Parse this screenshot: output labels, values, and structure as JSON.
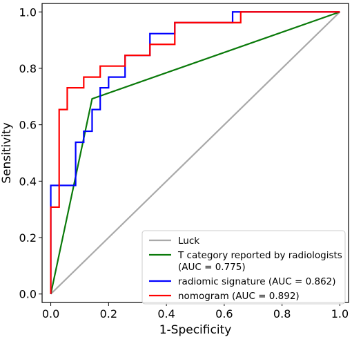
{
  "chart_data": {
    "type": "line",
    "xlabel": "1-Specificity",
    "ylabel": "Sensitivity",
    "xlim": [
      -0.03,
      1.03
    ],
    "ylim": [
      -0.03,
      1.03
    ],
    "x_ticks": [
      "0.0",
      "0.2",
      "0.4",
      "0.6",
      "0.8",
      "1.0"
    ],
    "y_ticks": [
      "0.0",
      "0.2",
      "0.4",
      "0.6",
      "0.8",
      "1.0"
    ],
    "grid": false,
    "legend_position": "bottom-right",
    "series": [
      {
        "name": "Luck",
        "color": "#a9a9a9",
        "points": [
          [
            0,
            0
          ],
          [
            1,
            1
          ]
        ]
      },
      {
        "name": "T category reported by radiologists (AUC = 0.775)",
        "color": "#0a7a0a",
        "points": [
          [
            0,
            0
          ],
          [
            0.143,
            0.692
          ],
          [
            1,
            1
          ]
        ]
      },
      {
        "name": "radiomic signature (AUC = 0.862)",
        "color": "#0000ff",
        "points": [
          [
            0,
            0
          ],
          [
            0,
            0.385
          ],
          [
            0.086,
            0.385
          ],
          [
            0.086,
            0.538
          ],
          [
            0.114,
            0.538
          ],
          [
            0.114,
            0.577
          ],
          [
            0.143,
            0.577
          ],
          [
            0.143,
            0.654
          ],
          [
            0.171,
            0.654
          ],
          [
            0.171,
            0.731
          ],
          [
            0.2,
            0.731
          ],
          [
            0.2,
            0.769
          ],
          [
            0.257,
            0.769
          ],
          [
            0.257,
            0.846
          ],
          [
            0.343,
            0.846
          ],
          [
            0.343,
            0.923
          ],
          [
            0.429,
            0.923
          ],
          [
            0.429,
            0.962
          ],
          [
            0.629,
            0.962
          ],
          [
            0.629,
            1.0
          ],
          [
            1,
            1
          ]
        ]
      },
      {
        "name": "nomogram (AUC = 0.892)",
        "color": "#ff0000",
        "points": [
          [
            0,
            0
          ],
          [
            0,
            0.308
          ],
          [
            0.029,
            0.308
          ],
          [
            0.029,
            0.654
          ],
          [
            0.057,
            0.654
          ],
          [
            0.057,
            0.731
          ],
          [
            0.114,
            0.731
          ],
          [
            0.114,
            0.769
          ],
          [
            0.171,
            0.769
          ],
          [
            0.171,
            0.808
          ],
          [
            0.257,
            0.808
          ],
          [
            0.257,
            0.846
          ],
          [
            0.343,
            0.846
          ],
          [
            0.343,
            0.885
          ],
          [
            0.429,
            0.885
          ],
          [
            0.429,
            0.962
          ],
          [
            0.657,
            0.962
          ],
          [
            0.657,
            1.0
          ],
          [
            1,
            1
          ]
        ]
      }
    ],
    "legend": [
      {
        "lines": [
          "Luck"
        ],
        "color": "#a9a9a9"
      },
      {
        "lines": [
          "T category reported by radiologists",
          "(AUC = 0.775)"
        ],
        "color": "#0a7a0a"
      },
      {
        "lines": [
          "radiomic signature (AUC = 0.862)"
        ],
        "color": "#0000ff"
      },
      {
        "lines": [
          "nomogram (AUC = 0.892)"
        ],
        "color": "#ff0000"
      }
    ]
  }
}
